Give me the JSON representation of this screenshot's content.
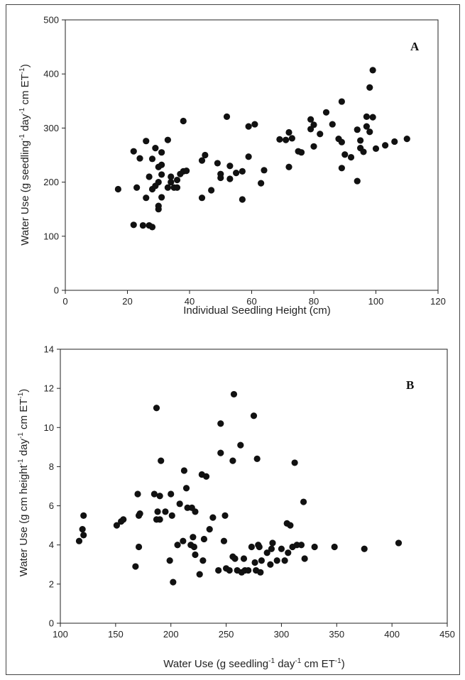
{
  "chart_data": [
    {
      "type": "scatter",
      "panel_letter": "A",
      "xlabel": "Individual Seedling Height (cm)",
      "ylabel": {
        "base": "Water Use (g  seedling",
        "sup1": "-1",
        "mid": "  day",
        "sup2": "-1",
        "end": "  cm ET",
        "sup3": "-1",
        "close": ")"
      },
      "xlim": [
        0,
        120
      ],
      "ylim": [
        0,
        500
      ],
      "xticks": [
        "0",
        "20",
        "40",
        "60",
        "80",
        "100",
        "120"
      ],
      "yticks": [
        "0",
        "100",
        "200",
        "300",
        "400",
        "500"
      ],
      "grid": false,
      "points": [
        [
          17,
          187
        ],
        [
          22,
          121
        ],
        [
          22,
          257
        ],
        [
          23,
          190
        ],
        [
          24,
          244
        ],
        [
          25,
          120
        ],
        [
          26,
          276
        ],
        [
          26,
          171
        ],
        [
          27,
          210
        ],
        [
          27,
          120
        ],
        [
          28,
          243
        ],
        [
          28,
          117
        ],
        [
          28,
          187
        ],
        [
          29,
          263
        ],
        [
          29,
          193
        ],
        [
          30,
          228
        ],
        [
          30,
          200
        ],
        [
          30,
          156
        ],
        [
          30,
          150
        ],
        [
          31,
          255
        ],
        [
          31,
          232
        ],
        [
          31,
          214
        ],
        [
          31,
          172
        ],
        [
          33,
          278
        ],
        [
          33,
          190
        ],
        [
          34,
          200
        ],
        [
          34,
          210
        ],
        [
          35,
          190
        ],
        [
          36,
          204
        ],
        [
          36,
          190
        ],
        [
          37,
          215
        ],
        [
          38,
          220
        ],
        [
          38,
          313
        ],
        [
          39,
          221
        ],
        [
          44,
          240
        ],
        [
          44,
          171
        ],
        [
          45,
          250
        ],
        [
          47,
          185
        ],
        [
          49,
          235
        ],
        [
          50,
          215
        ],
        [
          50,
          208
        ],
        [
          52,
          321
        ],
        [
          53,
          230
        ],
        [
          53,
          206
        ],
        [
          55,
          217
        ],
        [
          57,
          220
        ],
        [
          57,
          168
        ],
        [
          59,
          247
        ],
        [
          59,
          303
        ],
        [
          61,
          307
        ],
        [
          63,
          198
        ],
        [
          64,
          222
        ],
        [
          69,
          279
        ],
        [
          71,
          278
        ],
        [
          72,
          292
        ],
        [
          72,
          228
        ],
        [
          73,
          281
        ],
        [
          75,
          257
        ],
        [
          76,
          255
        ],
        [
          79,
          316
        ],
        [
          79,
          298
        ],
        [
          80,
          306
        ],
        [
          80,
          266
        ],
        [
          82,
          289
        ],
        [
          84,
          329
        ],
        [
          86,
          307
        ],
        [
          88,
          280
        ],
        [
          89,
          349
        ],
        [
          89,
          274
        ],
        [
          89,
          226
        ],
        [
          90,
          251
        ],
        [
          92,
          246
        ],
        [
          94,
          297
        ],
        [
          94,
          202
        ],
        [
          95,
          277
        ],
        [
          95,
          263
        ],
        [
          96,
          256
        ],
        [
          97,
          321
        ],
        [
          97,
          303
        ],
        [
          98,
          375
        ],
        [
          98,
          293
        ],
        [
          99,
          320
        ],
        [
          99,
          407
        ],
        [
          100,
          262
        ],
        [
          103,
          268
        ],
        [
          106,
          275
        ],
        [
          110,
          280
        ]
      ]
    },
    {
      "type": "scatter",
      "panel_letter": "B",
      "xlabel": {
        "base": "Water Use (g  seedling",
        "sup1": "-1",
        "mid": "  day",
        "sup2": "-1",
        "end": "  cm ET",
        "sup3": "-1",
        "close": ")"
      },
      "ylabel": {
        "base": "Water Use (g  cm height",
        "sup1": "-1",
        "mid": "  day",
        "sup2": "-1",
        "end": "  cm ET",
        "sup3": "-1",
        "close": ")"
      },
      "xlim": [
        100,
        450
      ],
      "ylim": [
        0,
        14
      ],
      "xticks": [
        "100",
        "150",
        "200",
        "250",
        "300",
        "350",
        "400",
        "450"
      ],
      "yticks": [
        "0",
        "2",
        "4",
        "6",
        "8",
        "10",
        "12",
        "14"
      ],
      "grid": false,
      "points": [
        [
          117,
          4.2
        ],
        [
          120,
          4.8
        ],
        [
          121,
          5.5
        ],
        [
          121,
          4.5
        ],
        [
          151,
          5.0
        ],
        [
          155,
          5.2
        ],
        [
          157,
          5.3
        ],
        [
          168,
          2.9
        ],
        [
          170,
          6.6
        ],
        [
          171,
          5.5
        ],
        [
          171,
          3.9
        ],
        [
          172,
          5.6
        ],
        [
          185,
          6.6
        ],
        [
          187,
          11.0
        ],
        [
          187,
          5.3
        ],
        [
          188,
          5.7
        ],
        [
          190,
          6.5
        ],
        [
          190,
          5.3
        ],
        [
          191,
          8.3
        ],
        [
          195,
          5.7
        ],
        [
          199,
          3.2
        ],
        [
          200,
          6.6
        ],
        [
          201,
          5.5
        ],
        [
          202,
          2.1
        ],
        [
          206,
          4.0
        ],
        [
          208,
          6.1
        ],
        [
          211,
          4.2
        ],
        [
          212,
          7.8
        ],
        [
          214,
          6.9
        ],
        [
          215,
          5.9
        ],
        [
          218,
          4.0
        ],
        [
          219,
          5.9
        ],
        [
          220,
          4.4
        ],
        [
          221,
          3.9
        ],
        [
          222,
          5.7
        ],
        [
          222,
          3.5
        ],
        [
          226,
          2.5
        ],
        [
          228,
          7.6
        ],
        [
          229,
          3.2
        ],
        [
          230,
          4.3
        ],
        [
          232,
          7.5
        ],
        [
          235,
          4.8
        ],
        [
          238,
          5.4
        ],
        [
          243,
          2.7
        ],
        [
          245,
          10.2
        ],
        [
          245,
          8.7
        ],
        [
          248,
          4.2
        ],
        [
          249,
          5.5
        ],
        [
          250,
          2.8
        ],
        [
          253,
          2.7
        ],
        [
          256,
          8.3
        ],
        [
          256,
          3.4
        ],
        [
          257,
          11.7
        ],
        [
          258,
          3.3
        ],
        [
          260,
          2.7
        ],
        [
          263,
          9.1
        ],
        [
          264,
          2.6
        ],
        [
          266,
          3.3
        ],
        [
          267,
          2.7
        ],
        [
          270,
          2.7
        ],
        [
          273,
          3.9
        ],
        [
          275,
          10.6
        ],
        [
          276,
          3.1
        ],
        [
          277,
          2.7
        ],
        [
          278,
          8.4
        ],
        [
          279,
          4.0
        ],
        [
          280,
          3.9
        ],
        [
          281,
          2.6
        ],
        [
          282,
          3.2
        ],
        [
          287,
          3.6
        ],
        [
          290,
          3.0
        ],
        [
          291,
          3.8
        ],
        [
          292,
          4.1
        ],
        [
          296,
          3.2
        ],
        [
          300,
          3.8
        ],
        [
          303,
          3.2
        ],
        [
          305,
          5.1
        ],
        [
          306,
          3.6
        ],
        [
          308,
          5.0
        ],
        [
          310,
          3.9
        ],
        [
          312,
          8.2
        ],
        [
          314,
          4.0
        ],
        [
          318,
          4.0
        ],
        [
          320,
          6.2
        ],
        [
          321,
          3.3
        ],
        [
          330,
          3.9
        ],
        [
          348,
          3.9
        ],
        [
          375,
          3.8
        ],
        [
          406,
          4.1
        ]
      ]
    }
  ]
}
